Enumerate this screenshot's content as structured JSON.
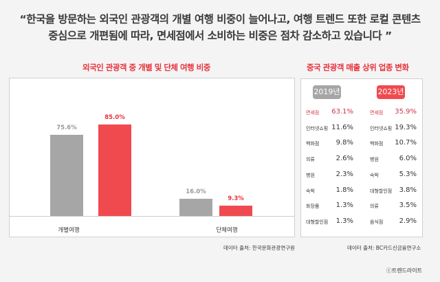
{
  "quote": [
    "“한국을 방문하는 외국인 관광객의 개별 여행 비중이 늘어나고, 여행 트렌드 또한 로컬 콘텐츠",
    "중심으로 개편됨에 따라, 면세점에서 소비하는 비중은 점차 감소하고 있습니다 ”"
  ],
  "chart_data": {
    "type": "bar",
    "title": "외국인 관광객 중 개별 및 단체 여행 비중",
    "categories": [
      "개별여행",
      "단체여행"
    ],
    "series": [
      {
        "name": "2019",
        "color": "#a6a6a6",
        "values": [
          75.6,
          16.0
        ],
        "labels": [
          "75.6%",
          "16.0%"
        ]
      },
      {
        "name": "2023",
        "color": "#f04a4f",
        "values": [
          85.0,
          9.3
        ],
        "labels": [
          "85.0%",
          "9.3%"
        ]
      }
    ],
    "ylim": [
      0,
      100
    ],
    "source": "데이터 출처: 한국문화관광연구원"
  },
  "table": {
    "title": "중국 관광객 매출 상위 업종 변화",
    "years": [
      "2019년",
      "2023년"
    ],
    "col2019": [
      [
        "면세점",
        "63.1%"
      ],
      [
        "인터넷쇼핑",
        "11.6%"
      ],
      [
        "백화점",
        "9.8%"
      ],
      [
        "의류",
        "2.6%"
      ],
      [
        "병원",
        "2.3%"
      ],
      [
        "숙박",
        "1.8%"
      ],
      [
        "화장품",
        "1.3%"
      ],
      [
        "대형할인점",
        "1.3%"
      ]
    ],
    "col2023": [
      [
        "면세점",
        "35.9%"
      ],
      [
        "인터넷쇼핑",
        "19.3%"
      ],
      [
        "백화점",
        "10.7%"
      ],
      [
        "병원",
        "6.0%"
      ],
      [
        "숙박",
        "5.3%"
      ],
      [
        "대형할인점",
        "3.8%"
      ],
      [
        "의류",
        "3.5%"
      ],
      [
        "음식점",
        "2.9%"
      ]
    ],
    "source": "데이터 출처: BC카드신금융연구소"
  },
  "colors": {
    "accent": "#e8323c",
    "gray": "#a6a6a6"
  },
  "copyright": "ⓒ트렌드라이트"
}
